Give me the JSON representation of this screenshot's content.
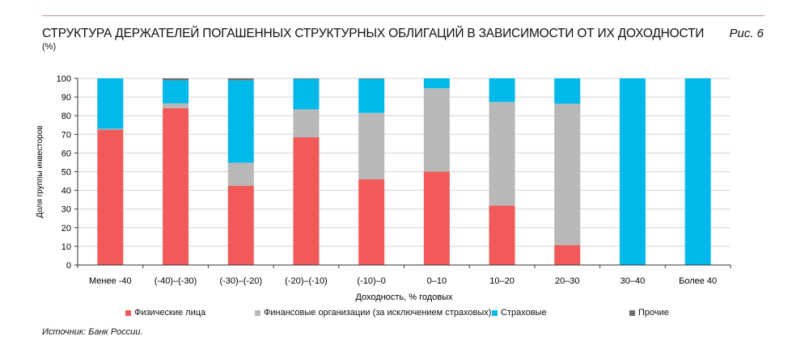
{
  "header": {
    "title": "СТРУКТУРА ДЕРЖАТЕЛЕЙ ПОГАШЕННЫХ СТРУКТУРНЫХ ОБЛИГАЦИЙ В ЗАВИСИМОСТИ ОТ ИХ ДОХОДНОСТИ",
    "unit": "(%)",
    "figure": "Рис. 6"
  },
  "source": "Источник: Банк России.",
  "chart_data": {
    "type": "bar",
    "stacked": true,
    "title": "СТРУКТУРА ДЕРЖАТЕЛЕЙ ПОГАШЕННЫХ СТРУКТУРНЫХ ОБЛИГАЦИЙ В ЗАВИСИМОСТИ ОТ ИХ ДОХОДНОСТИ",
    "xlabel": "Доходность, % годовых",
    "ylabel": "Доля группы инвесторов",
    "ylim": [
      0,
      100
    ],
    "yticks": [
      "0",
      "10",
      "20",
      "30",
      "40",
      "50",
      "60",
      "70",
      "80",
      "90",
      "100"
    ],
    "grid": true,
    "legend_position": "bottom",
    "categories": [
      "Менее -40",
      "(-40)–(-30)",
      "(-30)–(-20)",
      "(-20)–(-10)",
      "(-10)–0",
      "0–10",
      "10–20",
      "20–30",
      "30–40",
      "Более 40"
    ],
    "series": [
      {
        "name": "Физические лица",
        "color": "#f25a5a",
        "values": [
          72.5,
          84,
          42.5,
          68.4,
          46,
          50,
          31.8,
          10.7,
          0,
          0
        ]
      },
      {
        "name": "Финансовые организации (за исключением страховых)",
        "color": "#b8b8b8",
        "values": [
          0.5,
          2.6,
          12.3,
          15,
          35.5,
          44.7,
          55.5,
          75.7,
          0,
          0
        ]
      },
      {
        "name": "Страховые",
        "color": "#00b9eb",
        "values": [
          27,
          12.4,
          44.2,
          16.3,
          18.2,
          5.3,
          12.7,
          13.6,
          100,
          100
        ]
      },
      {
        "name": "Прочие",
        "color": "#6d6d6d",
        "values": [
          0,
          1,
          1,
          0.3,
          0.3,
          0,
          0,
          0,
          0,
          0
        ]
      }
    ]
  }
}
